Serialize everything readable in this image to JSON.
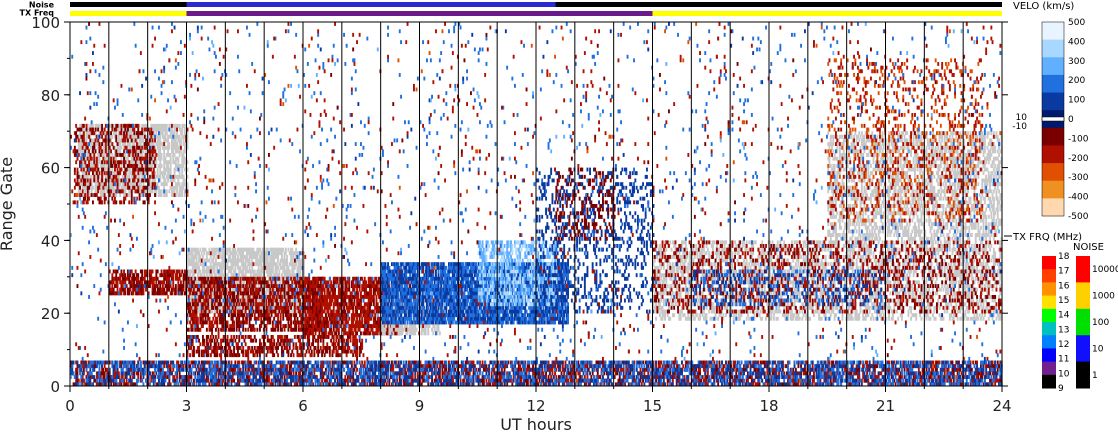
{
  "strip_labels": {
    "noise": "Noise",
    "tx_freq": "TX Freq"
  },
  "chart_data": {
    "type": "heatmap",
    "title": "",
    "xlabel": "UT hours",
    "ylabel": "Range Gate",
    "xlim": [
      0,
      24
    ],
    "ylim": [
      0,
      100
    ],
    "x_ticks": [
      "0",
      "3",
      "6",
      "9",
      "12",
      "15",
      "18",
      "21",
      "24"
    ],
    "y_ticks": [
      "0",
      "20",
      "40",
      "60",
      "80",
      "100"
    ],
    "scan_boundaries_hours": [
      1.0,
      2.0,
      3.0,
      4.0,
      5.0,
      6.0,
      7.0,
      8.0,
      9.0,
      10.0,
      11.0,
      12.0,
      13.0,
      14.0,
      15.0,
      16.0,
      17.0,
      18.0,
      19.0,
      20.0,
      21.0,
      22.0,
      23.0
    ],
    "tx_freq_strip": [
      {
        "start": 0,
        "end": 3,
        "color": "#ffff00"
      },
      {
        "start": 3,
        "end": 15,
        "color": "#6a1a8a"
      },
      {
        "start": 15,
        "end": 24,
        "color": "#ffff00"
      }
    ],
    "noise_strip": [
      {
        "start": 0,
        "end": 3,
        "color": "#000000"
      },
      {
        "start": 3,
        "end": 12.5,
        "color": "#2a2ad0"
      },
      {
        "start": 12.5,
        "end": 24,
        "color": "#000000"
      }
    ],
    "regions": [
      {
        "x": [
          0.2,
          3.0
        ],
        "y": [
          52,
          72
        ],
        "val": "gs",
        "density": 0.7
      },
      {
        "x": [
          0.1,
          2.2
        ],
        "y": [
          50,
          72
        ],
        "val": -150,
        "density": 0.35
      },
      {
        "x": [
          1.0,
          3.0
        ],
        "y": [
          25,
          32
        ],
        "val": -150,
        "density": 0.7
      },
      {
        "x": [
          3.0,
          6.0
        ],
        "y": [
          20,
          38
        ],
        "val": "gs",
        "density": 0.75
      },
      {
        "x": [
          3.0,
          6.5
        ],
        "y": [
          15,
          30
        ],
        "val": -150,
        "density": 0.6
      },
      {
        "x": [
          3.0,
          7.5
        ],
        "y": [
          8,
          14
        ],
        "val": -150,
        "density": 0.55
      },
      {
        "x": [
          6.0,
          8.5
        ],
        "y": [
          14,
          30
        ],
        "val": -170,
        "density": 0.75
      },
      {
        "x": [
          8.0,
          9.5
        ],
        "y": [
          14,
          24
        ],
        "val": "gs",
        "density": 0.6
      },
      {
        "x": [
          8.0,
          12.8
        ],
        "y": [
          17,
          34
        ],
        "val": 150,
        "density": 0.85
      },
      {
        "x": [
          10.5,
          12.5
        ],
        "y": [
          22,
          40
        ],
        "val": 350,
        "density": 0.55
      },
      {
        "x": [
          12.0,
          15.0
        ],
        "y": [
          20,
          60
        ],
        "val": 100,
        "density": 0.2
      },
      {
        "x": [
          12.5,
          14.0
        ],
        "y": [
          40,
          60
        ],
        "val": -100,
        "density": 0.2
      },
      {
        "x": [
          15.0,
          24.0
        ],
        "y": [
          18,
          40
        ],
        "val": "gs",
        "density": 0.45
      },
      {
        "x": [
          15.0,
          24.0
        ],
        "y": [
          20,
          40
        ],
        "val": -150,
        "density": 0.2
      },
      {
        "x": [
          16.0,
          21.0
        ],
        "y": [
          22,
          32
        ],
        "val": 150,
        "density": 0.2
      },
      {
        "x": [
          19.5,
          24.0
        ],
        "y": [
          40,
          70
        ],
        "val": "gs",
        "density": 0.5
      },
      {
        "x": [
          19.5,
          23.5
        ],
        "y": [
          45,
          90
        ],
        "val": -250,
        "density": 0.15
      },
      {
        "x": [
          0.0,
          24.0
        ],
        "y": [
          0,
          7
        ],
        "val": -150,
        "density": 0.55
      },
      {
        "x": [
          0.0,
          24.0
        ],
        "y": [
          0,
          7
        ],
        "val": 150,
        "density": 0.4
      },
      {
        "x": [
          0.0,
          24.0
        ],
        "y": [
          0,
          100
        ],
        "val": 200,
        "density": 0.02
      },
      {
        "x": [
          0.0,
          24.0
        ],
        "y": [
          0,
          100
        ],
        "val": -200,
        "density": 0.015
      }
    ],
    "velocity_colorbar": {
      "title": "VELO (km/s)",
      "range": [
        -500,
        500
      ],
      "ticks": [
        "500",
        "400",
        "300",
        "200",
        "100",
        "0",
        "-100",
        "-200",
        "-300",
        "-400",
        "-500"
      ],
      "zero_band_labels": [
        "10",
        "-10"
      ],
      "colors": [
        "#e8f4ff",
        "#a8d8ff",
        "#60b0ff",
        "#2070e0",
        "#0a3aa0",
        "#001a70",
        "#7a0000",
        "#b01000",
        "#e05000",
        "#f09020",
        "#ffd8b0"
      ]
    },
    "tx_freq_colorbar": {
      "title": "TX FRQ (MHz)",
      "ticks": [
        "18",
        "17",
        "16",
        "15",
        "14",
        "13",
        "12",
        "11",
        "10",
        "9"
      ],
      "colors": [
        "#ff0000",
        "#ff4000",
        "#ff9000",
        "#ffe000",
        "#00ff00",
        "#00c0c0",
        "#0080ff",
        "#0000ff",
        "#702090",
        "#000000"
      ]
    },
    "noise_colorbar": {
      "title": "NOISE",
      "ticks": [
        "10000",
        "1000",
        "100",
        "10",
        "1"
      ],
      "colors": [
        "#ff0000",
        "#ffd000",
        "#00e000",
        "#1010ff",
        "#000000"
      ]
    }
  }
}
